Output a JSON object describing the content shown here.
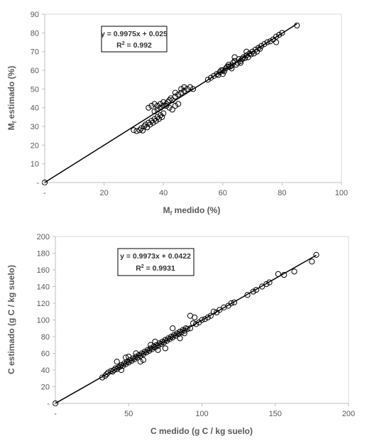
{
  "figure": {
    "charts": [
      {
        "type": "scatter",
        "xlabel_main": "M",
        "xlabel_sub": "f",
        "xlabel_rest": " medido (%)",
        "ylabel_main": "M",
        "ylabel_sub": "f",
        "ylabel_rest": " estimado (%)",
        "xlim": [
          0,
          100
        ],
        "ylim": [
          0,
          90
        ],
        "x_ticks": [
          "-",
          "20",
          "40",
          "60",
          "80",
          "100"
        ],
        "x_tick_values": [
          0,
          20,
          40,
          60,
          80,
          100
        ],
        "y_ticks": [
          "-",
          "10",
          "20",
          "30",
          "40",
          "50",
          "60",
          "70",
          "80",
          "90"
        ],
        "y_tick_values": [
          0,
          10,
          20,
          30,
          40,
          50,
          60,
          70,
          80,
          90
        ],
        "grid": false,
        "equation": "y = 0.9975x + 0.025",
        "r2_prefix": "R",
        "r2_sup": "2",
        "r2_value": " = 0.992",
        "fit": {
          "slope": 0.9975,
          "intercept": 0.025,
          "x_range": [
            0,
            85
          ]
        },
        "points": [
          [
            0,
            0
          ],
          [
            30,
            28
          ],
          [
            31,
            27.5
          ],
          [
            32,
            28
          ],
          [
            32.5,
            29
          ],
          [
            33,
            27.8
          ],
          [
            33.5,
            30
          ],
          [
            34,
            31
          ],
          [
            34.5,
            29.5
          ],
          [
            35,
            32
          ],
          [
            35.5,
            31
          ],
          [
            36,
            33
          ],
          [
            36.5,
            32
          ],
          [
            37,
            34
          ],
          [
            37.5,
            33
          ],
          [
            38,
            35
          ],
          [
            38.5,
            34
          ],
          [
            39,
            36
          ],
          [
            39.5,
            35
          ],
          [
            40,
            37
          ],
          [
            37,
            38
          ],
          [
            38,
            39
          ],
          [
            39,
            40
          ],
          [
            40,
            41
          ],
          [
            41,
            42
          ],
          [
            41.5,
            43
          ],
          [
            42,
            44
          ],
          [
            42.5,
            45
          ],
          [
            43,
            44
          ],
          [
            44,
            46
          ],
          [
            45,
            47
          ],
          [
            46,
            48
          ],
          [
            47,
            49
          ],
          [
            48,
            50
          ],
          [
            49,
            51
          ],
          [
            38,
            41
          ],
          [
            39,
            42
          ],
          [
            40,
            43
          ],
          [
            41,
            41
          ],
          [
            42,
            40
          ],
          [
            43,
            39
          ],
          [
            44,
            41
          ],
          [
            45,
            42
          ],
          [
            46,
            50
          ],
          [
            47,
            51
          ],
          [
            50,
            50
          ],
          [
            35,
            40
          ],
          [
            36,
            41
          ],
          [
            37,
            42
          ],
          [
            44,
            48
          ],
          [
            55,
            55
          ],
          [
            56,
            56
          ],
          [
            57,
            57
          ],
          [
            58,
            58
          ],
          [
            58.5,
            57.5
          ],
          [
            59,
            59
          ],
          [
            59.5,
            60
          ],
          [
            60,
            60
          ],
          [
            60.5,
            59.5
          ],
          [
            61,
            61
          ],
          [
            61.5,
            62
          ],
          [
            62,
            63
          ],
          [
            62.5,
            62
          ],
          [
            63,
            62.5
          ],
          [
            63.5,
            64
          ],
          [
            64,
            65
          ],
          [
            64.5,
            63
          ],
          [
            65,
            64
          ],
          [
            65.5,
            66
          ],
          [
            66,
            65
          ],
          [
            66.5,
            66
          ],
          [
            67,
            67
          ],
          [
            67.5,
            66.5
          ],
          [
            68,
            68
          ],
          [
            68.5,
            67
          ],
          [
            69,
            69
          ],
          [
            69.5,
            68.5
          ],
          [
            70,
            70
          ],
          [
            70.5,
            69
          ],
          [
            71,
            71
          ],
          [
            71.5,
            70
          ],
          [
            72,
            72
          ],
          [
            72.5,
            71.5
          ],
          [
            73,
            73
          ],
          [
            74,
            74
          ],
          [
            75,
            75
          ],
          [
            76,
            75.5
          ],
          [
            77,
            76.5
          ],
          [
            78,
            78
          ],
          [
            78,
            75
          ],
          [
            79,
            79
          ],
          [
            80,
            80
          ],
          [
            85,
            84
          ],
          [
            62,
            62
          ],
          [
            64,
            67
          ],
          [
            66,
            64
          ],
          [
            60,
            58
          ],
          [
            63,
            61
          ],
          [
            68,
            70
          ]
        ]
      },
      {
        "type": "scatter",
        "xlabel": "C medido (g C / kg suelo)",
        "ylabel": "C estimado (g C / kg suelo)",
        "xlim": [
          0,
          200
        ],
        "ylim": [
          0,
          200
        ],
        "x_ticks": [
          "-",
          "50",
          "100",
          "150",
          "200"
        ],
        "x_tick_values": [
          0,
          50,
          100,
          150,
          200
        ],
        "y_ticks": [
          "-",
          "20",
          "40",
          "60",
          "80",
          "100",
          "120",
          "140",
          "160",
          "180",
          "200"
        ],
        "y_tick_values": [
          0,
          20,
          40,
          60,
          80,
          100,
          120,
          140,
          160,
          180,
          200
        ],
        "grid": false,
        "equation": "y = 0.9973x + 0.0422",
        "r2_prefix": "R",
        "r2_sup": "2",
        "r2_value": " = 0.9931",
        "fit": {
          "slope": 0.9973,
          "intercept": 0.0422,
          "x_range": [
            0,
            178
          ]
        },
        "points": [
          [
            0,
            0
          ],
          [
            32,
            31
          ],
          [
            34,
            33
          ],
          [
            35,
            35
          ],
          [
            36,
            37
          ],
          [
            38,
            39
          ],
          [
            39,
            38
          ],
          [
            40,
            40
          ],
          [
            41,
            42
          ],
          [
            42,
            41
          ],
          [
            43,
            43
          ],
          [
            44,
            44
          ],
          [
            45,
            46
          ],
          [
            46,
            45
          ],
          [
            47,
            48
          ],
          [
            48,
            47
          ],
          [
            49,
            50
          ],
          [
            50,
            49
          ],
          [
            51,
            52
          ],
          [
            52,
            51
          ],
          [
            53,
            54
          ],
          [
            54,
            53
          ],
          [
            55,
            56
          ],
          [
            56,
            55
          ],
          [
            57,
            58
          ],
          [
            58,
            57
          ],
          [
            59,
            60
          ],
          [
            60,
            59
          ],
          [
            61,
            62
          ],
          [
            62,
            61
          ],
          [
            63,
            64
          ],
          [
            64,
            63
          ],
          [
            65,
            66
          ],
          [
            66,
            65
          ],
          [
            67,
            68
          ],
          [
            68,
            67
          ],
          [
            69,
            70
          ],
          [
            70,
            69
          ],
          [
            71,
            72
          ],
          [
            72,
            71
          ],
          [
            73,
            74
          ],
          [
            74,
            73
          ],
          [
            75,
            76
          ],
          [
            76,
            75
          ],
          [
            77,
            78
          ],
          [
            78,
            77
          ],
          [
            79,
            80
          ],
          [
            80,
            79
          ],
          [
            81,
            82
          ],
          [
            82,
            81
          ],
          [
            83,
            84
          ],
          [
            84,
            83
          ],
          [
            85,
            86
          ],
          [
            86,
            85
          ],
          [
            87,
            88
          ],
          [
            88,
            87
          ],
          [
            89,
            90
          ],
          [
            90,
            89
          ],
          [
            92,
            105
          ],
          [
            95,
            103
          ],
          [
            92,
            90
          ],
          [
            94,
            96
          ],
          [
            96,
            95
          ],
          [
            98,
            97
          ],
          [
            100,
            100
          ],
          [
            102,
            101
          ],
          [
            104,
            103
          ],
          [
            106,
            105
          ],
          [
            108,
            110
          ],
          [
            110,
            109
          ],
          [
            112,
            112
          ],
          [
            115,
            115
          ],
          [
            118,
            117
          ],
          [
            120,
            120
          ],
          [
            122,
            121
          ],
          [
            131,
            130
          ],
          [
            135,
            134
          ],
          [
            137,
            136
          ],
          [
            141,
            140
          ],
          [
            144,
            143
          ],
          [
            146,
            145
          ],
          [
            152,
            155
          ],
          [
            156,
            154
          ],
          [
            163,
            158
          ],
          [
            175,
            170
          ],
          [
            178,
            178
          ],
          [
            45,
            40
          ],
          [
            50,
            56
          ],
          [
            55,
            60
          ],
          [
            60,
            52
          ],
          [
            65,
            70
          ],
          [
            70,
            64
          ],
          [
            80,
            90
          ],
          [
            85,
            78
          ],
          [
            88,
            84
          ],
          [
            75,
            66
          ],
          [
            68,
            74
          ],
          [
            58,
            50
          ],
          [
            48,
            55
          ],
          [
            42,
            50
          ]
        ]
      }
    ]
  }
}
